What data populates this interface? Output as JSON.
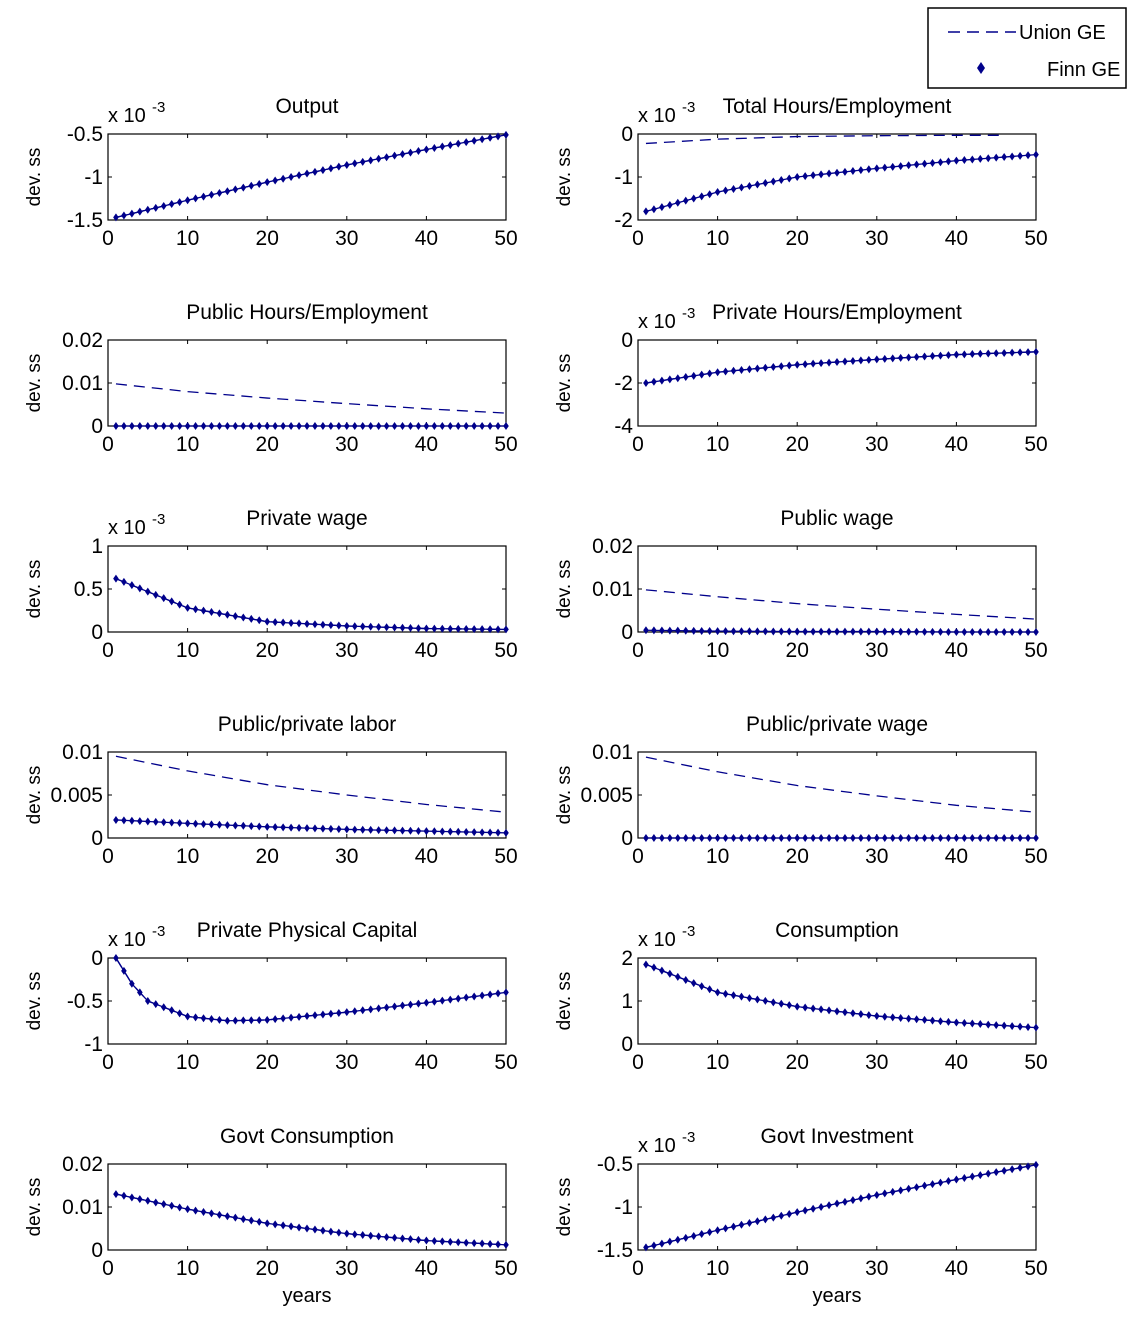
{
  "legend": {
    "entries": [
      {
        "label": "Union GE",
        "marker": "dashed-line"
      },
      {
        "label": "Finn GE",
        "marker": "diamond"
      }
    ]
  },
  "colors": {
    "line": "#00008b",
    "axes": "#000000",
    "background": "#ffffff"
  },
  "chart_data": [
    {
      "type": "line",
      "title": "Output",
      "ylabel": "dev. ss",
      "xlabel": "",
      "scale_label": "x 10",
      "scale_exp": "-3",
      "xlim": [
        0,
        50
      ],
      "ylim": [
        -1.5,
        -0.5
      ],
      "xticks": [
        0,
        10,
        20,
        30,
        40,
        50
      ],
      "xtick_labels": [
        "0",
        "10",
        "20",
        "30",
        "40",
        "50"
      ],
      "yticks": [
        -1.5,
        -1,
        -0.5
      ],
      "ytick_labels": [
        "-1.5",
        "-1",
        "-0.5"
      ],
      "series": [
        {
          "name": "Union GE",
          "style": "dashed",
          "x": [
            1,
            10,
            20,
            30,
            40,
            50
          ],
          "y": [
            -1.47,
            -1.27,
            -1.06,
            -0.86,
            -0.68,
            -0.51
          ]
        },
        {
          "name": "Finn GE",
          "style": "diamond",
          "x": [
            1,
            10,
            20,
            30,
            40,
            50
          ],
          "y": [
            -1.47,
            -1.27,
            -1.06,
            -0.86,
            -0.68,
            -0.51
          ]
        }
      ]
    },
    {
      "type": "line",
      "title": "Total Hours/Employment",
      "ylabel": "dev. ss",
      "xlabel": "",
      "scale_label": "x 10",
      "scale_exp": "-3",
      "xlim": [
        0,
        50
      ],
      "ylim": [
        -2,
        0
      ],
      "xticks": [
        0,
        10,
        20,
        30,
        40,
        50
      ],
      "xtick_labels": [
        "0",
        "10",
        "20",
        "30",
        "40",
        "50"
      ],
      "yticks": [
        -2,
        -1,
        0
      ],
      "ytick_labels": [
        "-2",
        "-1",
        "0"
      ],
      "series": [
        {
          "name": "Union GE",
          "style": "dashed",
          "x": [
            1,
            10,
            20,
            30,
            40,
            46
          ],
          "y": [
            -0.22,
            -0.12,
            -0.06,
            -0.04,
            -0.03,
            -0.03
          ]
        },
        {
          "name": "Finn GE",
          "style": "diamond",
          "x": [
            1,
            10,
            20,
            30,
            40,
            50
          ],
          "y": [
            -1.8,
            -1.35,
            -1.0,
            -0.8,
            -0.62,
            -0.48
          ]
        }
      ]
    },
    {
      "type": "line",
      "title": "Public Hours/Employment",
      "ylabel": "dev. ss",
      "xlabel": "",
      "scale_label": "",
      "scale_exp": "",
      "xlim": [
        0,
        50
      ],
      "ylim": [
        0,
        0.02
      ],
      "xticks": [
        0,
        10,
        20,
        30,
        40,
        50
      ],
      "xtick_labels": [
        "0",
        "10",
        "20",
        "30",
        "40",
        "50"
      ],
      "yticks": [
        0,
        0.01,
        0.02
      ],
      "ytick_labels": [
        "0",
        "0.01",
        "0.02"
      ],
      "series": [
        {
          "name": "Union GE",
          "style": "dashed",
          "x": [
            1,
            10,
            20,
            30,
            40,
            50
          ],
          "y": [
            0.0098,
            0.008,
            0.0065,
            0.0052,
            0.004,
            0.003
          ]
        },
        {
          "name": "Finn GE",
          "style": "diamond",
          "x": [
            1,
            10,
            20,
            30,
            40,
            50
          ],
          "y": [
            0,
            0,
            0,
            0,
            0,
            0
          ]
        }
      ]
    },
    {
      "type": "line",
      "title": "Private Hours/Employment",
      "ylabel": "dev. ss",
      "xlabel": "",
      "scale_label": "x 10",
      "scale_exp": "-3",
      "xlim": [
        0,
        50
      ],
      "ylim": [
        -4,
        0
      ],
      "xticks": [
        0,
        10,
        20,
        30,
        40,
        50
      ],
      "xtick_labels": [
        "0",
        "10",
        "20",
        "30",
        "40",
        "50"
      ],
      "yticks": [
        -4,
        -2,
        0
      ],
      "ytick_labels": [
        "-4",
        "-2",
        "0"
      ],
      "series": [
        {
          "name": "Union GE",
          "style": "dashed",
          "x": [
            1,
            10,
            20,
            30,
            40,
            50
          ],
          "y": [
            -2.0,
            -1.5,
            -1.15,
            -0.9,
            -0.68,
            -0.55
          ]
        },
        {
          "name": "Finn GE",
          "style": "diamond",
          "x": [
            1,
            10,
            20,
            30,
            40,
            50
          ],
          "y": [
            -2.0,
            -1.5,
            -1.15,
            -0.9,
            -0.68,
            -0.55
          ]
        }
      ]
    },
    {
      "type": "line",
      "title": "Private wage",
      "ylabel": "dev. ss",
      "xlabel": "",
      "scale_label": "x 10",
      "scale_exp": "-3",
      "xlim": [
        0,
        50
      ],
      "ylim": [
        0,
        1
      ],
      "xticks": [
        0,
        10,
        20,
        30,
        40,
        50
      ],
      "xtick_labels": [
        "0",
        "10",
        "20",
        "30",
        "40",
        "50"
      ],
      "yticks": [
        0,
        0.5,
        1
      ],
      "ytick_labels": [
        "0",
        "0.5",
        "1"
      ],
      "series": [
        {
          "name": "Union GE",
          "style": "dashed",
          "x": [
            1,
            10,
            20,
            30,
            40,
            50
          ],
          "y": [
            0.62,
            0.28,
            0.12,
            0.07,
            0.04,
            0.03
          ]
        },
        {
          "name": "Finn GE",
          "style": "diamond",
          "x": [
            1,
            10,
            20,
            30,
            40,
            50
          ],
          "y": [
            0.62,
            0.28,
            0.12,
            0.07,
            0.04,
            0.03
          ]
        }
      ]
    },
    {
      "type": "line",
      "title": "Public wage",
      "ylabel": "dev. ss",
      "xlabel": "",
      "scale_label": "",
      "scale_exp": "",
      "xlim": [
        0,
        50
      ],
      "ylim": [
        0,
        0.02
      ],
      "xticks": [
        0,
        10,
        20,
        30,
        40,
        50
      ],
      "xtick_labels": [
        "0",
        "10",
        "20",
        "30",
        "40",
        "50"
      ],
      "yticks": [
        0,
        0.01,
        0.02
      ],
      "ytick_labels": [
        "0",
        "0.01",
        "0.02"
      ],
      "series": [
        {
          "name": "Union GE",
          "style": "dashed",
          "x": [
            1,
            10,
            20,
            30,
            40,
            50
          ],
          "y": [
            0.0098,
            0.0082,
            0.0066,
            0.0053,
            0.0041,
            0.003
          ]
        },
        {
          "name": "Finn GE",
          "style": "diamond",
          "x": [
            1,
            10,
            20,
            30,
            40,
            50
          ],
          "y": [
            0.0004,
            0.0002,
            0.0001,
            0.0001,
            0,
            0
          ]
        }
      ]
    },
    {
      "type": "line",
      "title": "Public/private labor",
      "ylabel": "dev. ss",
      "xlabel": "",
      "scale_label": "",
      "scale_exp": "",
      "xlim": [
        0,
        50
      ],
      "ylim": [
        0,
        0.01
      ],
      "xticks": [
        0,
        10,
        20,
        30,
        40,
        50
      ],
      "xtick_labels": [
        "0",
        "10",
        "20",
        "30",
        "40",
        "50"
      ],
      "yticks": [
        0,
        0.005,
        0.01
      ],
      "ytick_labels": [
        "0",
        "0.005",
        "0.01"
      ],
      "series": [
        {
          "name": "Union GE",
          "style": "dashed",
          "x": [
            1,
            10,
            20,
            30,
            40,
            50
          ],
          "y": [
            0.0095,
            0.0078,
            0.0062,
            0.005,
            0.0039,
            0.003
          ]
        },
        {
          "name": "Finn GE",
          "style": "diamond",
          "x": [
            1,
            10,
            20,
            30,
            40,
            50
          ],
          "y": [
            0.0021,
            0.0017,
            0.0013,
            0.001,
            0.0008,
            0.0006
          ]
        }
      ]
    },
    {
      "type": "line",
      "title": "Public/private wage",
      "ylabel": "dev. ss",
      "xlabel": "",
      "scale_label": "",
      "scale_exp": "",
      "xlim": [
        0,
        50
      ],
      "ylim": [
        0,
        0.01
      ],
      "xticks": [
        0,
        10,
        20,
        30,
        40,
        50
      ],
      "xtick_labels": [
        "0",
        "10",
        "20",
        "30",
        "40",
        "50"
      ],
      "yticks": [
        0,
        0.005,
        0.01
      ],
      "ytick_labels": [
        "0",
        "0.005",
        "0.01"
      ],
      "series": [
        {
          "name": "Union GE",
          "style": "dashed",
          "x": [
            1,
            10,
            20,
            30,
            40,
            50
          ],
          "y": [
            0.0094,
            0.0077,
            0.0061,
            0.0049,
            0.0038,
            0.003
          ]
        },
        {
          "name": "Finn GE",
          "style": "diamond",
          "x": [
            1,
            10,
            20,
            30,
            40,
            50
          ],
          "y": [
            0,
            0,
            0,
            0,
            0,
            0
          ]
        }
      ]
    },
    {
      "type": "line",
      "title": "Private Physical Capital",
      "ylabel": "dev. ss",
      "xlabel": "",
      "scale_label": "x 10",
      "scale_exp": "-3",
      "xlim": [
        0,
        50
      ],
      "ylim": [
        -1,
        0
      ],
      "xticks": [
        0,
        10,
        20,
        30,
        40,
        50
      ],
      "xtick_labels": [
        "0",
        "10",
        "20",
        "30",
        "40",
        "50"
      ],
      "yticks": [
        -1,
        -0.5,
        0
      ],
      "ytick_labels": [
        "-1",
        "-0.5",
        "0"
      ],
      "series": [
        {
          "name": "Union GE",
          "style": "dashed",
          "x": [
            1,
            3,
            5,
            10,
            15,
            20,
            30,
            40,
            50
          ],
          "y": [
            0,
            -0.3,
            -0.5,
            -0.68,
            -0.73,
            -0.72,
            -0.63,
            -0.52,
            -0.4
          ]
        },
        {
          "name": "Finn GE",
          "style": "diamond",
          "x": [
            1,
            3,
            5,
            10,
            15,
            20,
            30,
            40,
            50
          ],
          "y": [
            0,
            -0.3,
            -0.5,
            -0.68,
            -0.73,
            -0.72,
            -0.63,
            -0.52,
            -0.4
          ]
        }
      ]
    },
    {
      "type": "line",
      "title": "Consumption",
      "ylabel": "dev. ss",
      "xlabel": "",
      "scale_label": "x 10",
      "scale_exp": "-3",
      "xlim": [
        0,
        50
      ],
      "ylim": [
        0,
        2
      ],
      "xticks": [
        0,
        10,
        20,
        30,
        40,
        50
      ],
      "xtick_labels": [
        "0",
        "10",
        "20",
        "30",
        "40",
        "50"
      ],
      "yticks": [
        0,
        1,
        2
      ],
      "ytick_labels": [
        "0",
        "1",
        "2"
      ],
      "series": [
        {
          "name": "Union GE",
          "style": "dashed",
          "x": [
            1,
            10,
            20,
            30,
            40,
            50
          ],
          "y": [
            1.85,
            1.2,
            0.87,
            0.65,
            0.5,
            0.38
          ]
        },
        {
          "name": "Finn GE",
          "style": "diamond",
          "x": [
            1,
            10,
            20,
            30,
            40,
            50
          ],
          "y": [
            1.85,
            1.2,
            0.87,
            0.65,
            0.5,
            0.38
          ]
        }
      ]
    },
    {
      "type": "line",
      "title": "Govt Consumption",
      "ylabel": "dev. ss",
      "xlabel": "years",
      "scale_label": "",
      "scale_exp": "",
      "xlim": [
        0,
        50
      ],
      "ylim": [
        0,
        0.02
      ],
      "xticks": [
        0,
        10,
        20,
        30,
        40,
        50
      ],
      "xtick_labels": [
        "0",
        "10",
        "20",
        "30",
        "40",
        "50"
      ],
      "yticks": [
        0,
        0.01,
        0.02
      ],
      "ytick_labels": [
        "0",
        "0.01",
        "0.02"
      ],
      "series": [
        {
          "name": "Union GE",
          "style": "dashed",
          "x": [
            1,
            10,
            20,
            30,
            40,
            50
          ],
          "y": [
            0.013,
            0.0095,
            0.0062,
            0.0038,
            0.0022,
            0.0012
          ]
        },
        {
          "name": "Finn GE",
          "style": "diamond",
          "x": [
            1,
            10,
            20,
            30,
            40,
            50
          ],
          "y": [
            0.013,
            0.0095,
            0.0062,
            0.0038,
            0.0022,
            0.0012
          ]
        }
      ]
    },
    {
      "type": "line",
      "title": "Govt Investment",
      "ylabel": "dev. ss",
      "xlabel": "years",
      "scale_label": "x 10",
      "scale_exp": "-3",
      "xlim": [
        0,
        50
      ],
      "ylim": [
        -1.5,
        -0.5
      ],
      "xticks": [
        0,
        10,
        20,
        30,
        40,
        50
      ],
      "xtick_labels": [
        "0",
        "10",
        "20",
        "30",
        "40",
        "50"
      ],
      "yticks": [
        -1.5,
        -1,
        -0.5
      ],
      "ytick_labels": [
        "-1.5",
        "-1",
        "-0.5"
      ],
      "series": [
        {
          "name": "Union GE",
          "style": "dashed",
          "x": [
            1,
            10,
            20,
            30,
            40,
            50
          ],
          "y": [
            -1.47,
            -1.27,
            -1.06,
            -0.86,
            -0.68,
            -0.51
          ]
        },
        {
          "name": "Finn GE",
          "style": "diamond",
          "x": [
            1,
            10,
            20,
            30,
            40,
            50
          ],
          "y": [
            -1.47,
            -1.27,
            -1.06,
            -0.86,
            -0.68,
            -0.51
          ]
        }
      ]
    }
  ]
}
